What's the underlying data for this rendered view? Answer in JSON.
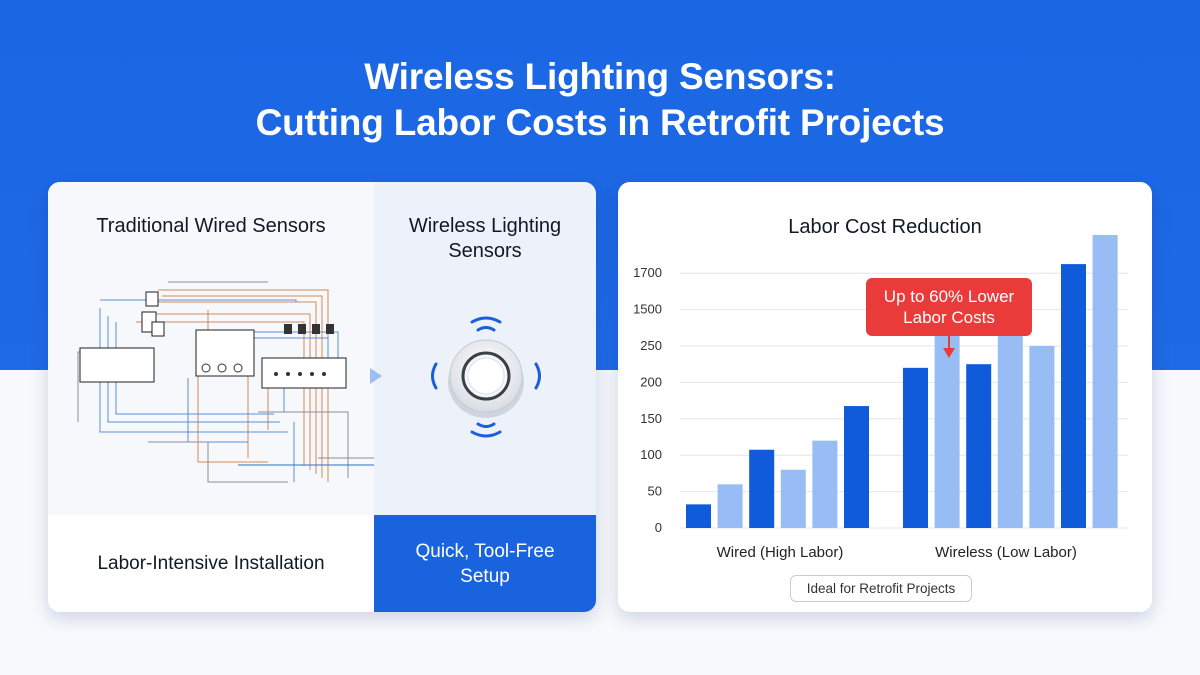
{
  "header": {
    "title_line1": "Wireless Lighting Sensors:",
    "title_line2": "Cutting Labor Costs in Retrofit Projects"
  },
  "comparison": {
    "wired_title": "Traditional Wired Sensors",
    "wireless_title": "Wireless Lighting Sensors",
    "wired_footer": "Labor-Intensive Installation",
    "wireless_footer": "Quick, Tool-Free Setup"
  },
  "colors": {
    "background_blue": "#1a66e3",
    "dark_bar": "#0f5bd9",
    "light_bar": "#97bdf4",
    "callout_red": "#ea3b3b"
  },
  "icons": [
    "wiring-diagram-icon",
    "arrow-right-icon",
    "wireless-sensor-icon"
  ],
  "chart_data": {
    "type": "bar",
    "title": "Labor Cost Reduction",
    "ytick_labels": [
      "0",
      "50",
      "100",
      "150",
      "200",
      "250",
      "1500",
      "1700"
    ],
    "groups": [
      {
        "name": "Wired (High Labor)",
        "bar_tick_positions": [
          0.65,
          1.2,
          2.15,
          1.6,
          2.4,
          3.35
        ],
        "shades": [
          "dark",
          "light",
          "dark",
          "light",
          "light",
          "dark"
        ]
      },
      {
        "name": "Wireless (Low Labor)",
        "bar_tick_positions": [
          4.4,
          5.5,
          4.5,
          5.95,
          5.0,
          7.25,
          8.05
        ],
        "shades": [
          "dark",
          "light",
          "dark",
          "light",
          "light",
          "dark",
          "light"
        ]
      }
    ],
    "annotation": "Up to 60% Lower Labor Costs",
    "footnote": "Ideal for Retrofit Projects"
  }
}
